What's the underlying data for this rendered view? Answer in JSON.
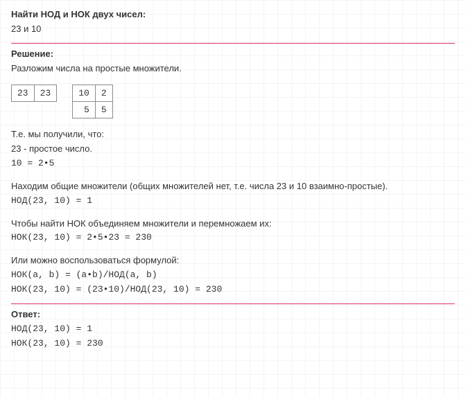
{
  "problem": {
    "title": "Найти НОД и НОК двух чисел:",
    "numbers": "23 и 10"
  },
  "solution": {
    "heading": "Решение:",
    "intro": "Разложим числа на простые множители.",
    "table1": {
      "r1c1": "23",
      "r1c2": "23"
    },
    "table2": {
      "r1c1": "10",
      "r1c2": "2",
      "r2c1": "5",
      "r2c2": "5"
    },
    "got_label": "Т.е. мы получили, что:",
    "prime_line": "23 - простое число.",
    "factor_line": "10 = 2•5",
    "common_text": "Находим общие множители (общих множителей нет, т.е. числа 23 и 10 взаимно-простые).",
    "gcd_line": "НОД(23, 10) = 1",
    "lcm_text": "Чтобы найти НОК объединяем множители и перемножаем их:",
    "lcm_line": "НОК(23, 10) = 2•5•23 = 230",
    "formula_text": "Или можно воспользоваться формулой:",
    "formula1": "НОК(a, b) = (a•b)/НОД(a, b)",
    "formula2": "НОК(23, 10) = (23•10)/НОД(23, 10) = 230"
  },
  "answer": {
    "heading": "Ответ:",
    "gcd": "НОД(23, 10) = 1",
    "lcm": "НОК(23, 10) = 230"
  }
}
